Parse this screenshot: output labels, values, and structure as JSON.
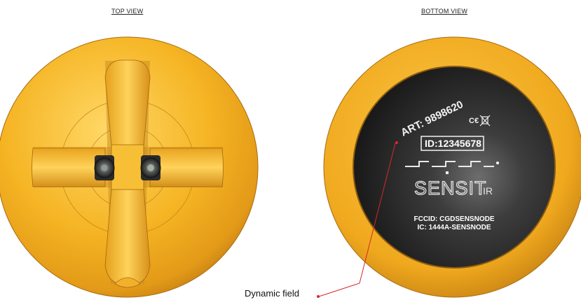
{
  "top_view": {
    "title": "TOP VIEW"
  },
  "bottom_view": {
    "title": "BOTTOM VIEW",
    "label": {
      "art": "ART: 9898620",
      "id": "ID:12345678",
      "brand_main": "SENSIT",
      "brand_suffix": "IR",
      "fccid": "FCCID: CGDSENSNODE",
      "ic": "IC: 1444A-SENSNODE"
    }
  },
  "callout": {
    "label": "Dynamic field"
  },
  "colors": {
    "housing": "#f5b423",
    "housing_shadow": "#c07e12",
    "label_dark": "#1e1e1e",
    "callout_line": "#d9262c"
  }
}
